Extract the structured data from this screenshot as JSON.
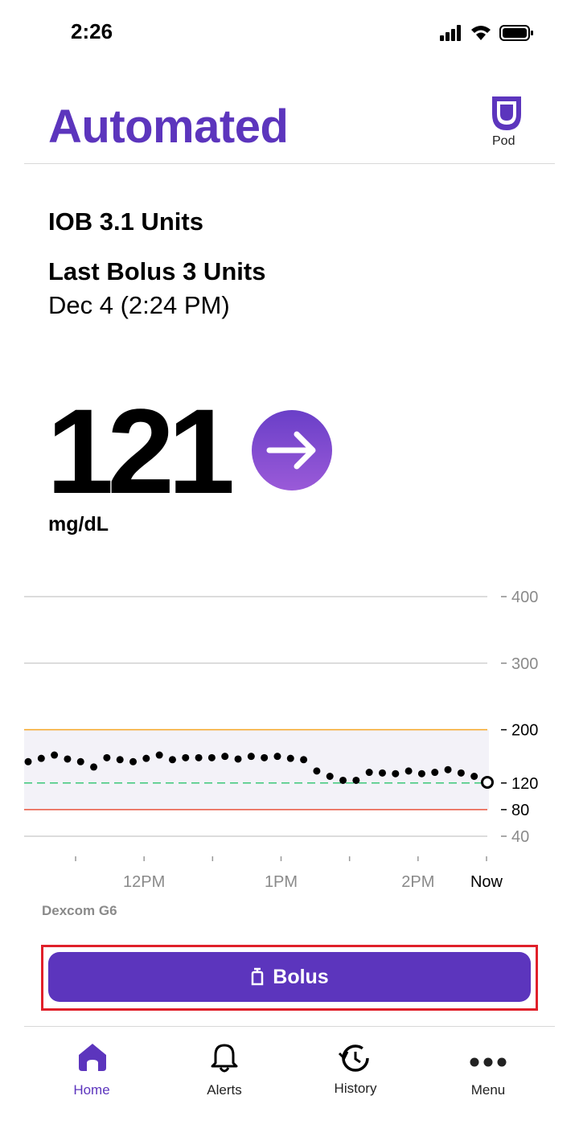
{
  "status_bar": {
    "time": "2:26"
  },
  "header": {
    "title": "Automated",
    "pod_label": "Pod"
  },
  "insulin": {
    "iob": "IOB 3.1 Units",
    "last_bolus": "Last Bolus 3 Units",
    "last_bolus_time": "Dec 4 (2:24 PM)"
  },
  "glucose": {
    "value": "121",
    "unit": "mg/dL"
  },
  "chart": {
    "type": "scatter",
    "values": [
      152,
      157,
      162,
      156,
      152,
      144,
      158,
      155,
      152,
      157,
      162,
      155,
      158,
      158,
      158,
      160,
      156,
      160,
      158,
      160,
      157,
      155,
      138,
      130,
      124,
      124,
      136,
      135,
      134,
      138,
      134,
      136,
      140,
      135,
      130,
      121
    ],
    "color": "#000000",
    "ylim": [
      40,
      400
    ],
    "yticks": [
      400,
      300,
      200,
      120,
      80,
      40
    ],
    "high": 200,
    "high_color": "#f5a623",
    "target": 120,
    "target_color": "#3cc87a",
    "low": 80,
    "low_color": "#e8553d",
    "range_fill": "#f3f2f8",
    "grid": true,
    "xticks": [
      null,
      "12PM",
      null,
      "1PM",
      null,
      "2PM",
      "Now"
    ],
    "source": "Dexcom G6"
  },
  "bolus_button": {
    "label": "Bolus"
  },
  "nav": {
    "items": [
      "Home",
      "Alerts",
      "History",
      "Menu"
    ]
  }
}
